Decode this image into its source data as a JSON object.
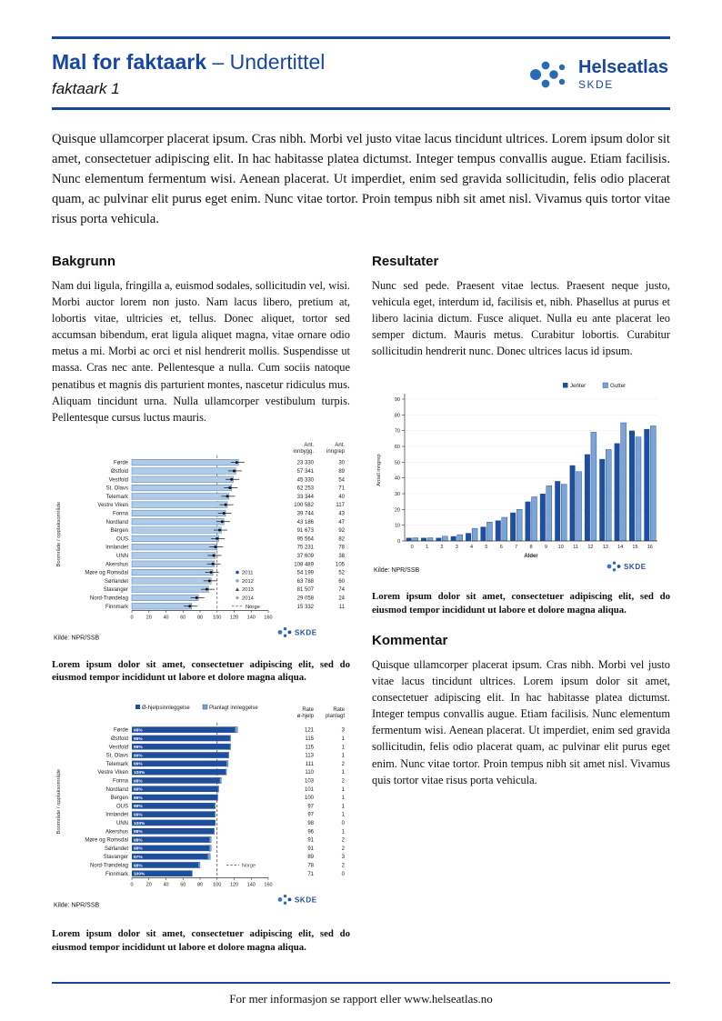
{
  "header": {
    "title": "Mal for faktaark",
    "subtitle": "– Undertittel",
    "page_label": "faktaark 1",
    "logo_text": "Helseatlas",
    "logo_subtext": "SKDE"
  },
  "intro": "Quisque ullamcorper placerat ipsum. Cras nibh. Morbi vel justo vitae lacus tincidunt ultrices. Lorem ipsum dolor sit amet, consectetuer adipiscing elit. In hac habitasse platea dictumst. Integer tempus convallis augue. Etiam facilisis. Nunc elementum fermentum wisi. Aenean placerat. Ut imperdiet, enim sed gravida sollicitudin, felis odio placerat quam, ac pulvinar elit purus eget enim. Nunc vitae tortor. Proin tempus nibh sit amet nisl. Vivamus quis tortor vitae risus porta vehicula.",
  "sections": {
    "bakgrunn": {
      "heading": "Bakgrunn",
      "body": "Nam dui ligula, fringilla a, euismod sodales, sollicitudin vel, wisi. Morbi auctor lorem non justo. Nam lacus libero, pretium at, lobortis vitae, ultricies et, tellus. Donec aliquet, tortor sed accumsan bibendum, erat ligula aliquet magna, vitae ornare odio metus a mi. Morbi ac orci et nisl hendrerit mollis. Suspendisse ut massa. Cras nec ante. Pellentesque a nulla. Cum sociis natoque penatibus et magnis dis parturient montes, nascetur ridiculus mus. Aliquam tincidunt urna. Nulla ullamcorper vestibulum turpis. Pellentesque cursus luctus mauris."
    },
    "resultater": {
      "heading": "Resultater",
      "body": "Nunc sed pede. Praesent vitae lectus. Praesent neque justo, vehicula eget, interdum id, facilisis et, nibh. Phasellus at purus et libero lacinia dictum. Fusce aliquet. Nulla eu ante placerat leo semper dictum. Mauris metus. Curabitur lobortis. Curabitur sollicitudin hendrerit nunc. Donec ultrices lacus id ipsum."
    },
    "kommentar": {
      "heading": "Kommentar",
      "body": "Quisque ullamcorper placerat ipsum. Cras nibh. Morbi vel justo vitae lacus tincidunt ultrices. Lorem ipsum dolor sit amet, consectetuer adipiscing elit. In hac habitasse platea dictumst. Integer tempus convallis augue. Etiam facilisis. Nunc elementum fermentum wisi. Aenean placerat. Ut imperdiet, enim sed gravida sollicitudin, felis odio placerat quam, ac pulvinar elit purus eget enim. Nunc vitae tortor. Proin tempus nibh sit amet nisl. Vivamus quis tortor vitae risus porta vehicula."
    }
  },
  "captions": {
    "chart1": "Lorem ipsum dolor sit amet, consectetuer adipiscing elit, sed do eiusmod tempor incididunt ut labore et dolore magna aliqua.",
    "chart2": "Lorem ipsum dolor sit amet, consectetuer adipiscing elit, sed do eiusmod tempor incididunt ut labore et dolore magna aliqua.",
    "chart3": "Lorem ipsum dolor sit amet, consectetuer adipiscing elit, sed do eiusmod tempor incididunt ut labore et dolore magna aliqua."
  },
  "footer": {
    "text": "For mer informasjon se rapport eller www.helseatlas.no"
  },
  "colors": {
    "accent": "#17479e",
    "bar_light": "#aecbea",
    "bar_dark": "#1f4e9c",
    "bar_mid": "#7aa3d8",
    "legend_grey": "#8aa9cf"
  },
  "chart_data": [
    {
      "id": "rates-by-area",
      "type": "bar",
      "orientation": "horizontal",
      "ylabel": "Boområde / opptaksområde",
      "categories": [
        "Førde",
        "Østfold",
        "Vestfold",
        "St. Olavs",
        "Telemark",
        "Vestre Viken",
        "Fonna",
        "Nordland",
        "Bergen",
        "OUS",
        "Innlandet",
        "UNN",
        "Akershus",
        "Møre og Romsdal",
        "Sørlandet",
        "Stavanger",
        "Nord-Trøndelag",
        "Finnmark"
      ],
      "values": [
        125,
        122,
        119,
        117,
        114,
        112,
        110,
        108,
        105,
        102,
        100,
        98,
        97,
        95,
        93,
        90,
        78,
        70
      ],
      "xlim": [
        0,
        160
      ],
      "xticks": [
        0,
        20,
        40,
        60,
        80,
        100,
        120,
        140,
        160
      ],
      "reference_line": 100,
      "columns": {
        "headers": [
          "Ant. innbygg.",
          "Ant. inngrep"
        ],
        "rows": [
          [
            "23 330",
            "30"
          ],
          [
            "57 341",
            "89"
          ],
          [
            "45 330",
            "54"
          ],
          [
            "62 253",
            "71"
          ],
          [
            "33 344",
            "40"
          ],
          [
            "100 582",
            "117"
          ],
          [
            "39 744",
            "43"
          ],
          [
            "43 186",
            "47"
          ],
          [
            "91 673",
            "92"
          ],
          [
            "95 564",
            "82"
          ],
          [
            "75 231",
            "78"
          ],
          [
            "37 609",
            "38"
          ],
          [
            "108 489",
            "105"
          ],
          [
            "54 199",
            "52"
          ],
          [
            "63 788",
            "60"
          ],
          [
            "81 507",
            "74"
          ],
          [
            "29 058",
            "24"
          ],
          [
            "15 332",
            "11"
          ]
        ]
      },
      "legend": [
        "2011",
        "2012",
        "2013",
        "2014",
        "Norge"
      ],
      "source": "Kilde: NPR/SSB",
      "logo": "SKDE"
    },
    {
      "id": "age-distribution",
      "type": "bar",
      "orientation": "vertical",
      "xlabel": "Alder",
      "ylabel": "Antall inngrep",
      "categories": [
        "0",
        "1",
        "2",
        "3",
        "4",
        "5",
        "6",
        "7",
        "8",
        "9",
        "10",
        "11",
        "12",
        "13",
        "14",
        "15",
        "16"
      ],
      "series": [
        {
          "name": "Jenter",
          "values": [
            2,
            2,
            2,
            3,
            5,
            9,
            13,
            18,
            25,
            30,
            38,
            48,
            55,
            52,
            62,
            70,
            71
          ]
        },
        {
          "name": "Gutter",
          "values": [
            2,
            2,
            3,
            4,
            8,
            12,
            15,
            20,
            28,
            35,
            36,
            44,
            69,
            58,
            75,
            66,
            73
          ]
        }
      ],
      "ylim": [
        0,
        90
      ],
      "yticks": [
        0,
        10,
        20,
        30,
        40,
        50,
        60,
        70,
        80,
        90
      ],
      "legend_position": "top-right",
      "source": "Kilde: NPR/SSB",
      "logo": "SKDE"
    },
    {
      "id": "admission-type",
      "type": "bar",
      "orientation": "horizontal-stacked",
      "ylabel": "Boområde / opptaksområde",
      "categories": [
        "Førde",
        "Østfold",
        "Vestfold",
        "St. Olavs",
        "Telemark",
        "Vestre Viken",
        "Fonna",
        "Nordland",
        "Bergen",
        "OUS",
        "Innlandet",
        "UNN",
        "Akershus",
        "Møre og Romsdal",
        "Sørlandet",
        "Stavanger",
        "Nord-Trøndelag",
        "Finnmark"
      ],
      "series": [
        {
          "name": "Ø-hjelpsinnleggelse",
          "values": [
            121,
            115,
            115,
            113,
            111,
            110,
            103,
            101,
            100,
            97,
            97,
            98,
            96,
            91,
            91,
            89,
            78,
            71
          ]
        },
        {
          "name": "Planlagt innleggelse",
          "values": [
            3,
            1,
            1,
            1,
            2,
            1,
            2,
            1,
            1,
            1,
            1,
            0,
            1,
            2,
            2,
            3,
            2,
            0
          ]
        }
      ],
      "bar_labels": [
        "98%",
        "99%",
        "99%",
        "99%",
        "99%",
        "100%",
        "98%",
        "99%",
        "99%",
        "99%",
        "99%",
        "100%",
        "98%",
        "98%",
        "98%",
        "97%",
        "98%",
        "100%"
      ],
      "xlim": [
        0,
        160
      ],
      "xticks": [
        0,
        20,
        40,
        60,
        80,
        100,
        120,
        140,
        160
      ],
      "reference_line": 100,
      "reference_label": "Norge",
      "columns": {
        "headers": [
          "Rate ø-hjelp",
          "Rate planlagt"
        ],
        "rows": [
          [
            "121",
            "3"
          ],
          [
            "115",
            "1"
          ],
          [
            "115",
            "1"
          ],
          [
            "113",
            "1"
          ],
          [
            "111",
            "2"
          ],
          [
            "110",
            "1"
          ],
          [
            "103",
            "2"
          ],
          [
            "101",
            "1"
          ],
          [
            "100",
            "1"
          ],
          [
            "97",
            "1"
          ],
          [
            "97",
            "1"
          ],
          [
            "98",
            "0"
          ],
          [
            "96",
            "1"
          ],
          [
            "91",
            "2"
          ],
          [
            "91",
            "2"
          ],
          [
            "89",
            "3"
          ],
          [
            "78",
            "2"
          ],
          [
            "71",
            "0"
          ]
        ]
      },
      "source": "Kilde: NPR/SSB",
      "logo": "SKDE"
    }
  ]
}
